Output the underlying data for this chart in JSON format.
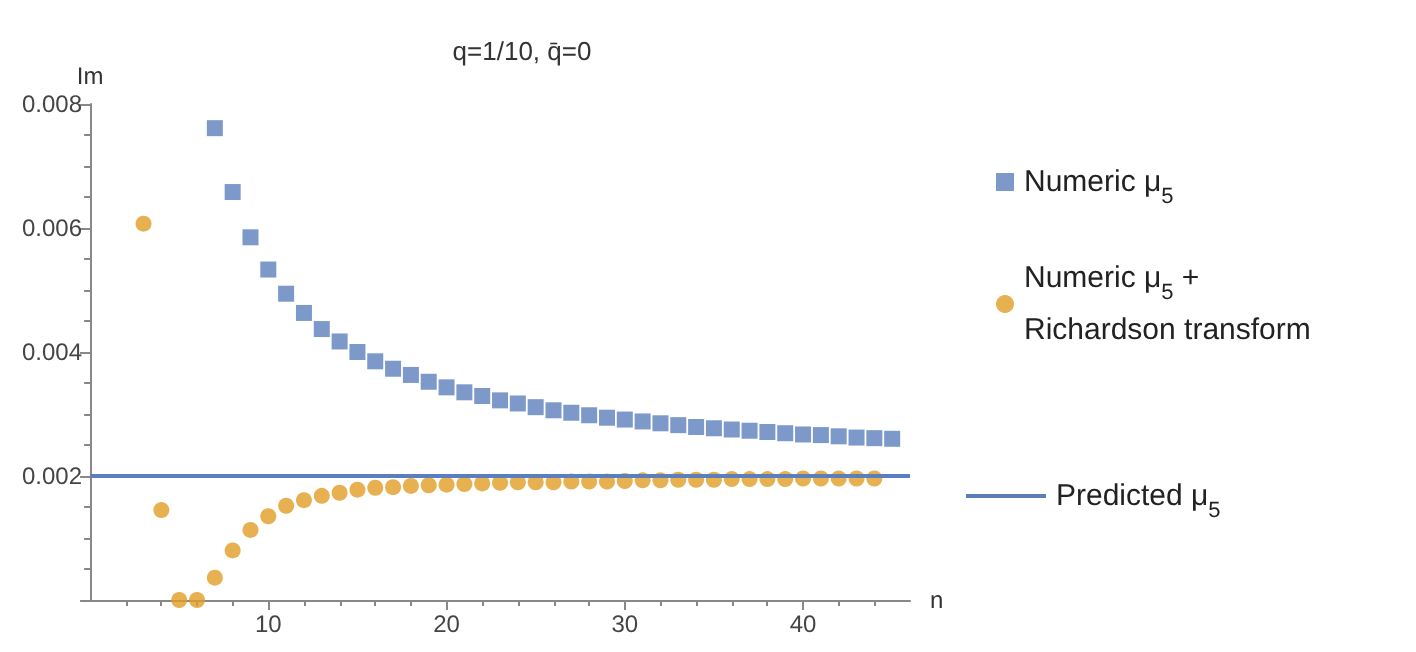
{
  "chart_data": {
    "type": "scatter",
    "title": "q=1/10, q̄=0",
    "xlabel": "n",
    "ylabel": "Im",
    "xlim": [
      0,
      46
    ],
    "ylim": [
      0,
      0.008
    ],
    "xticks": [
      10,
      20,
      30,
      40
    ],
    "yticks": [
      {
        "value": 0,
        "label": null
      },
      0.002,
      0.004,
      0.006,
      0.008
    ],
    "grid": false,
    "legend": "right",
    "series": [
      {
        "name": "Numeric μ$_{5}$",
        "color": "#5b7fbd",
        "marker": "square",
        "x": [
          7,
          8,
          9,
          10,
          11,
          12,
          13,
          14,
          15,
          16,
          17,
          18,
          19,
          20,
          21,
          22,
          23,
          24,
          25,
          26,
          27,
          28,
          29,
          30,
          31,
          32,
          33,
          34,
          35,
          36,
          37,
          38,
          39,
          40,
          41,
          42,
          43,
          44,
          45
        ],
        "values": [
          0.00761,
          0.00658,
          0.00585,
          0.00533,
          0.00494,
          0.00463,
          0.00437,
          0.00417,
          0.004,
          0.00385,
          0.00373,
          0.00363,
          0.00352,
          0.00343,
          0.00335,
          0.00329,
          0.00322,
          0.00317,
          0.00311,
          0.00306,
          0.00302,
          0.00298,
          0.00294,
          0.00291,
          0.00288,
          0.00285,
          0.00282,
          0.00279,
          0.00277,
          0.00275,
          0.00273,
          0.00271,
          0.00269,
          0.00267,
          0.00266,
          0.00264,
          0.00262,
          0.00261,
          0.0026
        ]
      },
      {
        "name": "Numeric μ$_{5}$ +\nRichardson transform",
        "color": "#e19c24",
        "marker": "circle",
        "x": [
          3,
          4,
          5,
          6,
          7,
          8,
          9,
          10,
          11,
          12,
          13,
          14,
          15,
          16,
          17,
          18,
          19,
          20,
          21,
          22,
          23,
          24,
          25,
          26,
          27,
          28,
          29,
          30,
          31,
          32,
          33,
          34,
          35,
          36,
          37,
          38,
          39,
          40,
          41,
          42,
          43,
          44
        ],
        "values": [
          0.00607,
          0.00145,
          0,
          0,
          0.00036,
          0.0008,
          0.00113,
          0.00135,
          0.00152,
          0.00161,
          0.00168,
          0.00173,
          0.00178,
          0.00181,
          0.00182,
          0.00184,
          0.00185,
          0.00186,
          0.00187,
          0.00188,
          0.00189,
          0.0019,
          0.0019,
          0.0019,
          0.00191,
          0.00191,
          0.00191,
          0.00192,
          0.00193,
          0.00193,
          0.00194,
          0.00194,
          0.00194,
          0.00195,
          0.00195,
          0.00195,
          0.00195,
          0.00196,
          0.00196,
          0.00196,
          0.00196,
          0.00196
        ]
      },
      {
        "name": "Predicted μ$_{5}$",
        "type": "line",
        "color": "#5b7fbd",
        "marker": "none",
        "line_style": "solid",
        "x": [
          0,
          46
        ],
        "values": [
          0.002,
          0.002
        ]
      }
    ]
  }
}
